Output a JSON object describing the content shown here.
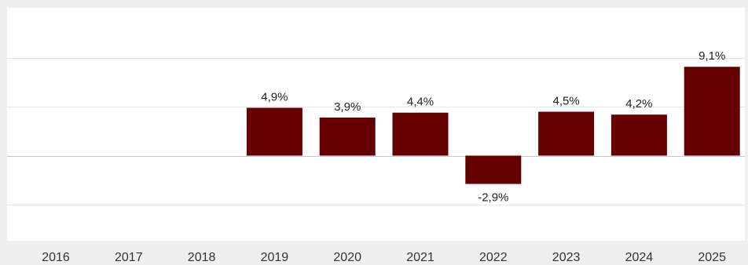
{
  "chart_data": {
    "type": "bar",
    "categories": [
      "2016",
      "2017",
      "2018",
      "2019",
      "2020",
      "2021",
      "2022",
      "2023",
      "2024",
      "2025"
    ],
    "values": [
      null,
      null,
      null,
      4.9,
      3.9,
      4.4,
      -2.9,
      4.5,
      4.2,
      9.1
    ],
    "data_labels": [
      "",
      "",
      "",
      "4,9%",
      "3,9%",
      "4,4%",
      "-2,9%",
      "4,5%",
      "4,2%",
      "9,1%"
    ],
    "ylim": [
      -7.5,
      15
    ],
    "gridlines": [
      -5,
      0,
      5,
      10
    ],
    "grid": true,
    "title": "",
    "xlabel": "",
    "ylabel": "",
    "bar_color": "#650000",
    "plot_background": "#ffffff",
    "page_background": "#efefef"
  }
}
